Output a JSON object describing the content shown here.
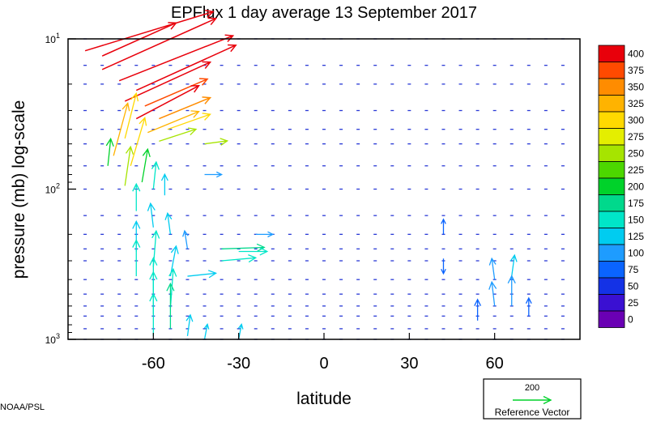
{
  "chart_data": {
    "type": "vector-field",
    "title": "EPFlux  1 day average  13 September 2017",
    "xlabel": "latitude",
    "ylabel": "pressure (mb)  log-scale",
    "xlim": [
      -90,
      90
    ],
    "ylim": [
      1000,
      10
    ],
    "y_scale": "log",
    "x_ticks": [
      {
        "value": -60,
        "label": "-60"
      },
      {
        "value": -30,
        "label": "-30"
      },
      {
        "value": 0,
        "label": "0"
      },
      {
        "value": 30,
        "label": "30"
      },
      {
        "value": 60,
        "label": "60"
      }
    ],
    "y_ticks": [
      {
        "value": 10,
        "base": "10",
        "exp": "1"
      },
      {
        "value": 100,
        "base": "10",
        "exp": "2"
      },
      {
        "value": 1000,
        "base": "10",
        "exp": "3"
      }
    ],
    "colorbar": {
      "labels": [
        "400",
        "375",
        "350",
        "325",
        "300",
        "275",
        "250",
        "225",
        "200",
        "175",
        "150",
        "125",
        "100",
        "75",
        "50",
        "25",
        "0"
      ],
      "colors": [
        "#e8000b",
        "#ff4a00",
        "#ff8c00",
        "#ffb300",
        "#ffd900",
        "#e4ee00",
        "#a6e400",
        "#4cd700",
        "#00d22a",
        "#00d98c",
        "#00e6c8",
        "#00ccf0",
        "#1e9cff",
        "#0a64ff",
        "#1432e6",
        "#3a10d2",
        "#6a00b4"
      ]
    },
    "vectors": [
      {
        "lat": -78,
        "p": 13,
        "dlat": 26,
        "dlp": 0.22,
        "mag": 400
      },
      {
        "lat": -84,
        "p": 12,
        "dlat": 45,
        "dlp": 0.26,
        "mag": 400
      },
      {
        "lat": -78,
        "p": 16,
        "dlat": 40,
        "dlp": 0.34,
        "mag": 400
      },
      {
        "lat": -72,
        "p": 19,
        "dlat": 40,
        "dlp": 0.3,
        "mag": 400
      },
      {
        "lat": -66,
        "p": 22,
        "dlat": 35,
        "dlp": 0.3,
        "mag": 400
      },
      {
        "lat": -70,
        "p": 26,
        "dlat": 30,
        "dlp": 0.26,
        "mag": 390
      },
      {
        "lat": -63,
        "p": 28,
        "dlat": 22,
        "dlp": 0.18,
        "mag": 380
      },
      {
        "lat": -66,
        "p": 34,
        "dlat": 22,
        "dlp": 0.22,
        "mag": 400
      },
      {
        "lat": -58,
        "p": 34,
        "dlat": 18,
        "dlp": 0.14,
        "mag": 360
      },
      {
        "lat": -62,
        "p": 42,
        "dlat": 18,
        "dlp": 0.14,
        "mag": 330
      },
      {
        "lat": -55,
        "p": 40,
        "dlat": 15,
        "dlp": 0.1,
        "mag": 290
      },
      {
        "lat": -58,
        "p": 48,
        "dlat": 13,
        "dlp": 0.08,
        "mag": 260
      },
      {
        "lat": -70,
        "p": 46,
        "dlat": 4,
        "dlp": 0.3,
        "mag": 310
      },
      {
        "lat": -74,
        "p": 60,
        "dlat": 5,
        "dlp": 0.35,
        "mag": 330
      },
      {
        "lat": -68,
        "p": 70,
        "dlat": 5,
        "dlp": 0.32,
        "mag": 300
      },
      {
        "lat": -70,
        "p": 95,
        "dlat": 2,
        "dlp": 0.26,
        "mag": 260
      },
      {
        "lat": -64,
        "p": 90,
        "dlat": 2,
        "dlp": 0.22,
        "mag": 190
      },
      {
        "lat": -60,
        "p": 100,
        "dlat": 1,
        "dlp": 0.18,
        "mag": 140
      },
      {
        "lat": -56,
        "p": 110,
        "dlat": 0,
        "dlp": 0.14,
        "mag": 130
      },
      {
        "lat": -76,
        "p": 70,
        "dlat": 1,
        "dlp": 0.18,
        "mag": 200
      },
      {
        "lat": -66,
        "p": 140,
        "dlat": 0,
        "dlp": 0.18,
        "mag": 150
      },
      {
        "lat": -60,
        "p": 180,
        "dlat": -1,
        "dlp": 0.16,
        "mag": 130
      },
      {
        "lat": -54,
        "p": 200,
        "dlat": -1,
        "dlp": 0.14,
        "mag": 120
      },
      {
        "lat": -48,
        "p": 250,
        "dlat": -1,
        "dlp": 0.12,
        "mag": 100
      },
      {
        "lat": -66,
        "p": 260,
        "dlat": 0,
        "dlp": 0.2,
        "mag": 130
      },
      {
        "lat": -60,
        "p": 330,
        "dlat": 1,
        "dlp": 0.24,
        "mag": 140
      },
      {
        "lat": -66,
        "p": 380,
        "dlat": 0,
        "dlp": 0.24,
        "mag": 140
      },
      {
        "lat": -54,
        "p": 380,
        "dlat": 2,
        "dlp": 0.2,
        "mag": 120
      },
      {
        "lat": -60,
        "p": 500,
        "dlat": 0,
        "dlp": 0.24,
        "mag": 150
      },
      {
        "lat": -54,
        "p": 620,
        "dlat": 1,
        "dlp": 0.26,
        "mag": 150
      },
      {
        "lat": -60,
        "p": 680,
        "dlat": 0,
        "dlp": 0.28,
        "mag": 160
      },
      {
        "lat": -54,
        "p": 850,
        "dlat": 0,
        "dlp": 0.3,
        "mag": 170
      },
      {
        "lat": -60,
        "p": 950,
        "dlat": 0,
        "dlp": 0.28,
        "mag": 150
      },
      {
        "lat": -48,
        "p": 950,
        "dlat": 1,
        "dlp": 0.14,
        "mag": 130
      },
      {
        "lat": -42,
        "p": 1000,
        "dlat": 1,
        "dlp": 0.1,
        "mag": 120
      },
      {
        "lat": -30,
        "p": 1000,
        "dlat": 1,
        "dlp": 0.1,
        "mag": 120
      },
      {
        "lat": -48,
        "p": 380,
        "dlat": 10,
        "dlp": 0.02,
        "mag": 130
      },
      {
        "lat": -36,
        "p": 250,
        "dlat": 15,
        "dlp": 0.01,
        "mag": 180
      },
      {
        "lat": -30,
        "p": 260,
        "dlat": 10,
        "dlp": 0,
        "mag": 150
      },
      {
        "lat": -36,
        "p": 300,
        "dlat": 12,
        "dlp": 0.02,
        "mag": 160
      },
      {
        "lat": -24,
        "p": 200,
        "dlat": 6,
        "dlp": 0,
        "mag": 90
      },
      {
        "lat": -42,
        "p": 50,
        "dlat": 8,
        "dlp": 0.02,
        "mag": 250
      },
      {
        "lat": -42,
        "p": 80,
        "dlat": 6,
        "dlp": 0,
        "mag": 90
      },
      {
        "lat": 42,
        "p": 200,
        "dlat": 0,
        "dlp": 0.1,
        "mag": 80
      },
      {
        "lat": 42,
        "p": 290,
        "dlat": 0,
        "dlp": -0.1,
        "mag": 80
      },
      {
        "lat": 60,
        "p": 400,
        "dlat": -1,
        "dlp": 0.14,
        "mag": 110
      },
      {
        "lat": 66,
        "p": 380,
        "dlat": 1,
        "dlp": 0.14,
        "mag": 120
      },
      {
        "lat": 66,
        "p": 600,
        "dlat": 0,
        "dlp": 0.2,
        "mag": 110
      },
      {
        "lat": 60,
        "p": 600,
        "dlat": -1,
        "dlp": 0.16,
        "mag": 90
      },
      {
        "lat": 54,
        "p": 750,
        "dlat": 0,
        "dlp": 0.14,
        "mag": 80
      },
      {
        "lat": 72,
        "p": 700,
        "dlat": 0,
        "dlp": 0.12,
        "mag": 80
      }
    ],
    "reference_vector": {
      "label": "200",
      "caption": "Reference Vector",
      "mag": 200
    }
  },
  "credit": "NOAA/PSL"
}
